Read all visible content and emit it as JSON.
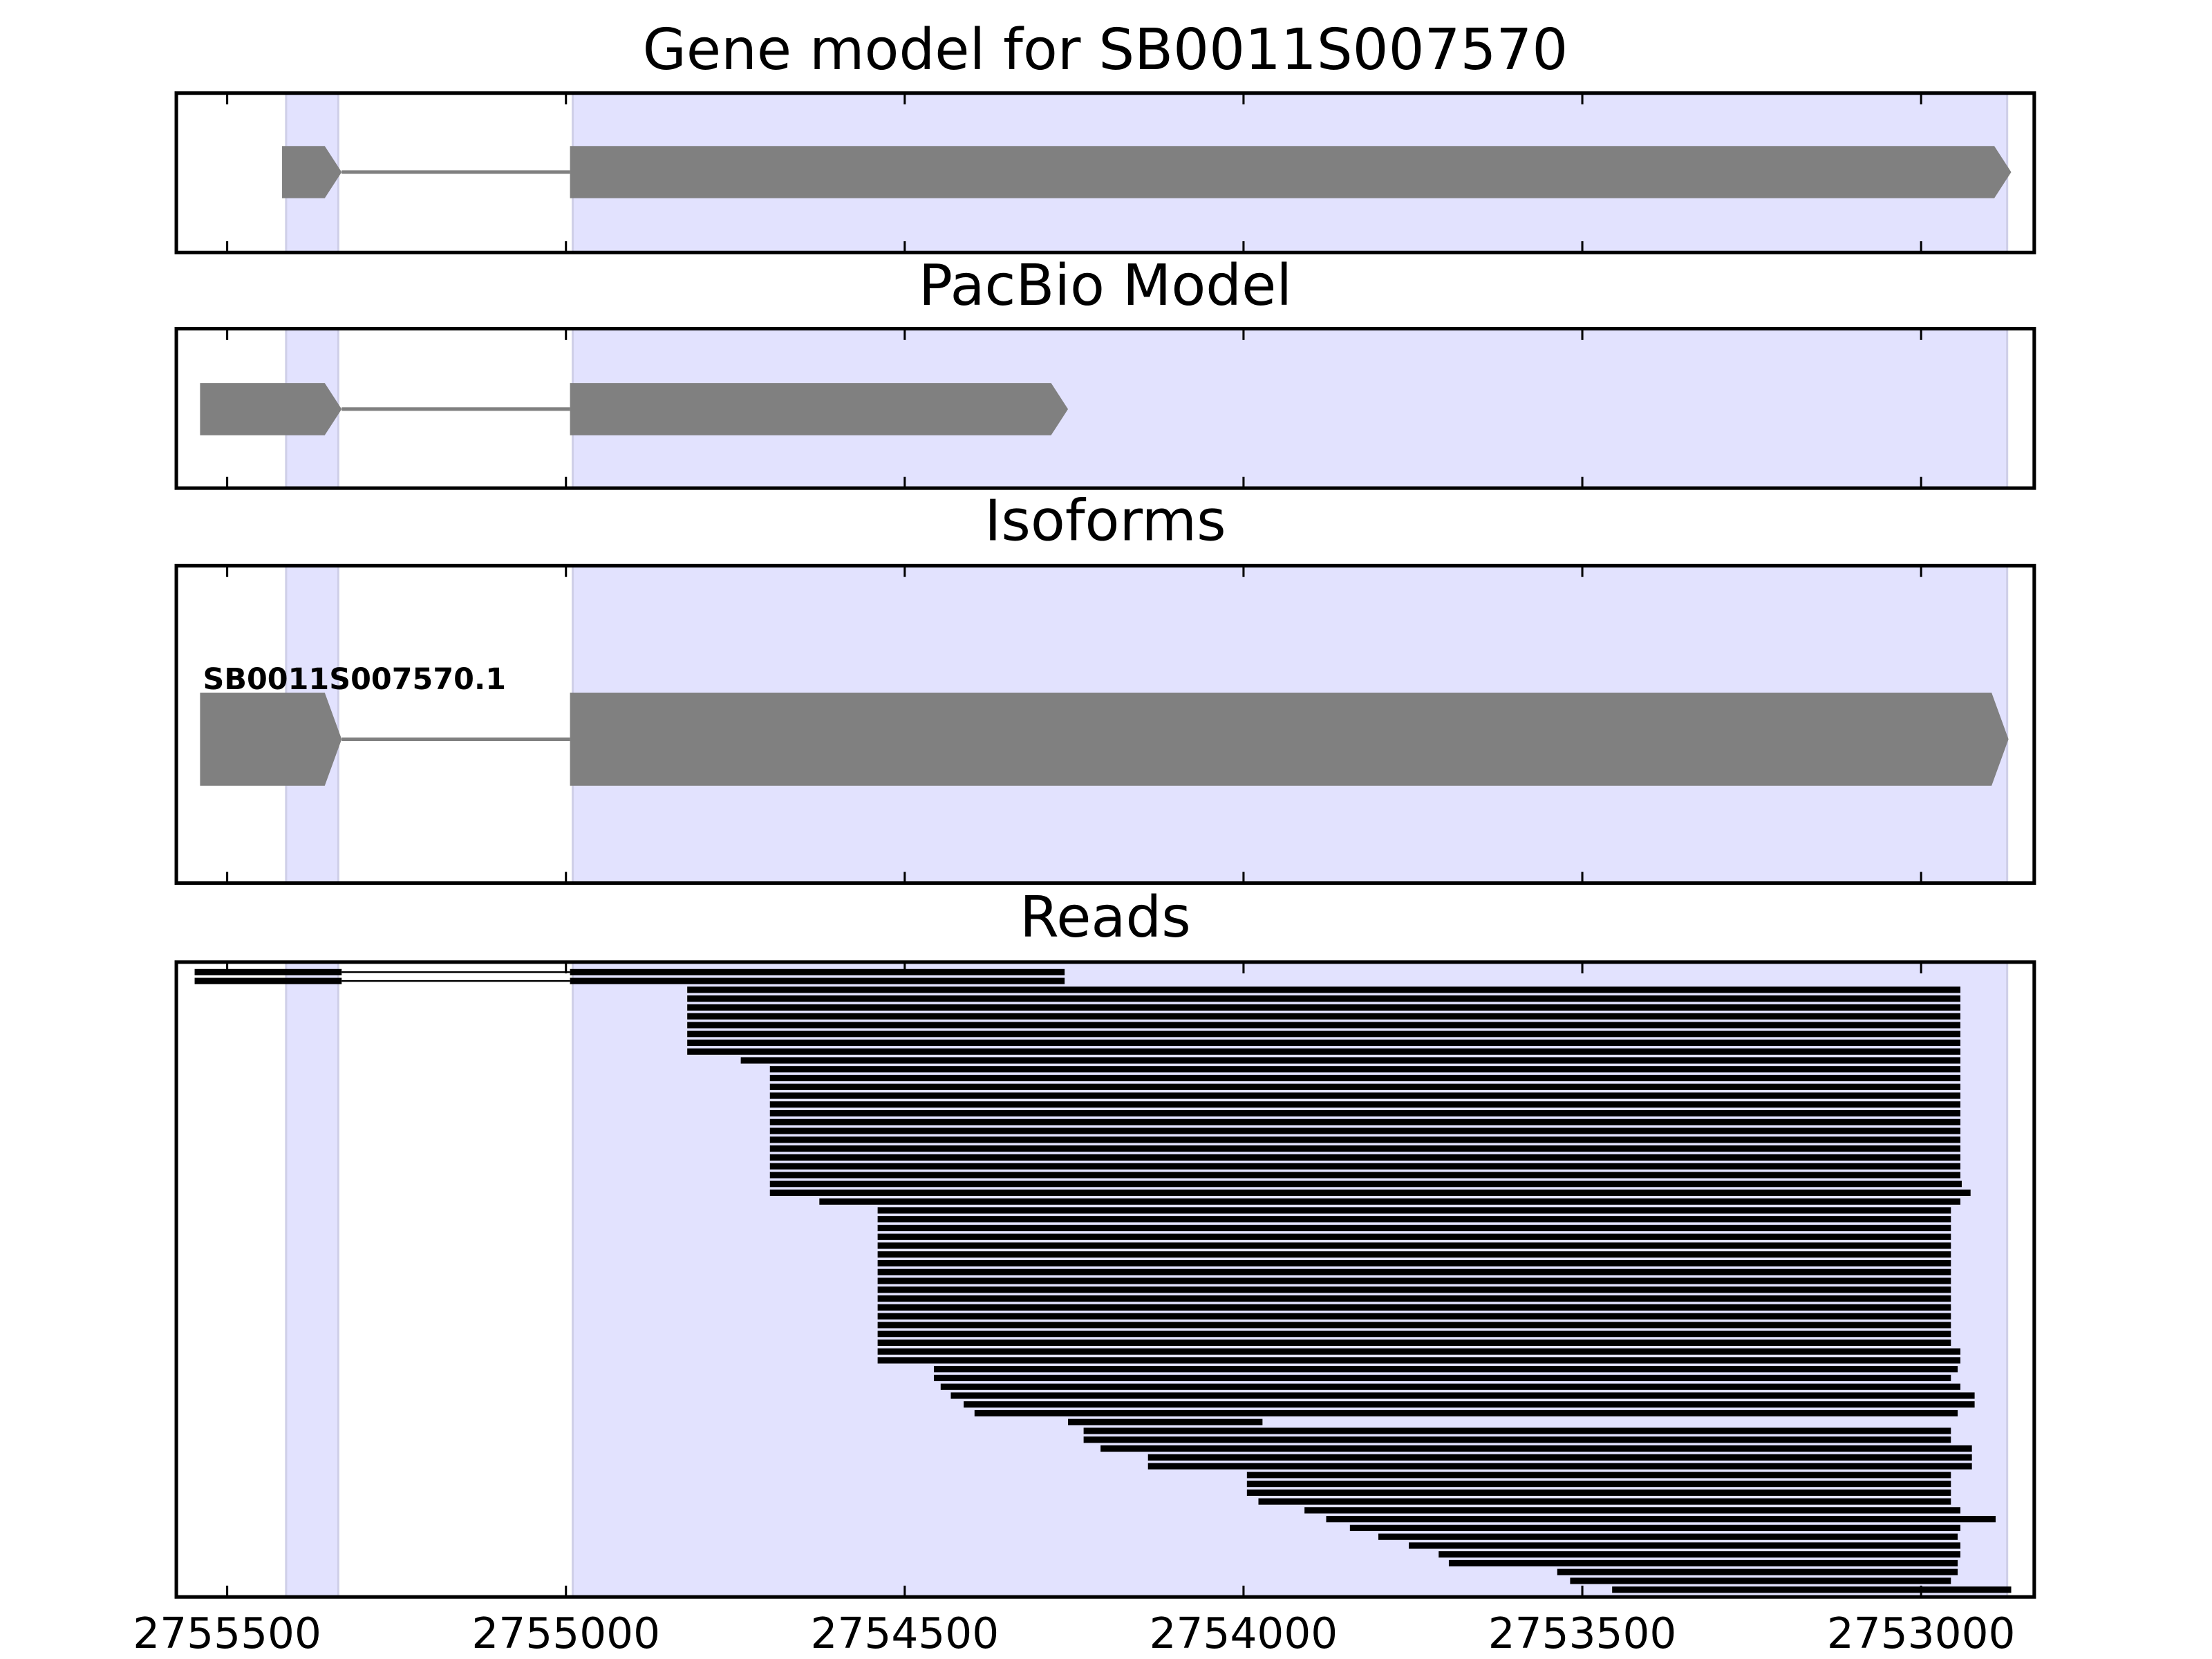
{
  "chart_data": {
    "type": "gene-tracks",
    "xlim": [
      2755575,
      2752833
    ],
    "xticks": [
      2755500,
      2755000,
      2754500,
      2754000,
      2753500,
      2753000
    ],
    "highlight_color": "#e2e2fe",
    "exon_color": "#808080",
    "read_color": "#000000",
    "highlights": [
      [
        2755413,
        2755336
      ],
      [
        2754990,
        2752873
      ]
    ],
    "panels": [
      {
        "title": "Gene model for SB0011S007570",
        "exons": [
          [
            2755419,
            2755331
          ],
          [
            2754994,
            2752867
          ]
        ]
      },
      {
        "title": "PacBio Model",
        "exons": [
          [
            2755540,
            2755331
          ],
          [
            2754994,
            2754259
          ]
        ]
      },
      {
        "title": "Isoforms",
        "isoforms": [
          {
            "name": "SB0011S007570.1",
            "exons": [
              [
                2755540,
                2755331
              ],
              [
                2754994,
                2752871
              ]
            ]
          }
        ]
      },
      {
        "title": "Reads",
        "reads": [
          [
            [
              2755548,
              2755331
            ],
            [
              2754994,
              2754264
            ]
          ],
          [
            [
              2755548,
              2755331
            ],
            [
              2754994,
              2754264
            ]
          ],
          [
            [
              2754821,
              2752942
            ]
          ],
          [
            [
              2754821,
              2752942
            ]
          ],
          [
            [
              2754821,
              2752942
            ]
          ],
          [
            [
              2754821,
              2752942
            ]
          ],
          [
            [
              2754821,
              2752942
            ]
          ],
          [
            [
              2754821,
              2752942
            ]
          ],
          [
            [
              2754821,
              2752942
            ]
          ],
          [
            [
              2754821,
              2752942
            ]
          ],
          [
            [
              2754742,
              2752942
            ]
          ],
          [
            [
              2754699,
              2752942
            ]
          ],
          [
            [
              2754699,
              2752942
            ]
          ],
          [
            [
              2754699,
              2752942
            ]
          ],
          [
            [
              2754699,
              2752942
            ]
          ],
          [
            [
              2754699,
              2752942
            ]
          ],
          [
            [
              2754699,
              2752942
            ]
          ],
          [
            [
              2754699,
              2752942
            ]
          ],
          [
            [
              2754699,
              2752942
            ]
          ],
          [
            [
              2754699,
              2752942
            ]
          ],
          [
            [
              2754699,
              2752942
            ]
          ],
          [
            [
              2754699,
              2752942
            ]
          ],
          [
            [
              2754699,
              2752942
            ]
          ],
          [
            [
              2754699,
              2752942
            ]
          ],
          [
            [
              2754699,
              2752940
            ]
          ],
          [
            [
              2754699,
              2752927
            ]
          ],
          [
            [
              2754626,
              2752942
            ]
          ],
          [
            [
              2754540,
              2752956
            ]
          ],
          [
            [
              2754540,
              2752956
            ]
          ],
          [
            [
              2754540,
              2752956
            ]
          ],
          [
            [
              2754540,
              2752956
            ]
          ],
          [
            [
              2754540,
              2752956
            ]
          ],
          [
            [
              2754540,
              2752956
            ]
          ],
          [
            [
              2754540,
              2752956
            ]
          ],
          [
            [
              2754540,
              2752956
            ]
          ],
          [
            [
              2754540,
              2752956
            ]
          ],
          [
            [
              2754540,
              2752956
            ]
          ],
          [
            [
              2754540,
              2752956
            ]
          ],
          [
            [
              2754540,
              2752956
            ]
          ],
          [
            [
              2754540,
              2752956
            ]
          ],
          [
            [
              2754540,
              2752956
            ]
          ],
          [
            [
              2754540,
              2752956
            ]
          ],
          [
            [
              2754540,
              2752956
            ]
          ],
          [
            [
              2754540,
              2752942
            ]
          ],
          [
            [
              2754540,
              2752942
            ]
          ],
          [
            [
              2754457,
              2752946
            ]
          ],
          [
            [
              2754457,
              2752956
            ]
          ],
          [
            [
              2754447,
              2752942
            ]
          ],
          [
            [
              2754432,
              2752921
            ]
          ],
          [
            [
              2754413,
              2752921
            ]
          ],
          [
            [
              2754397,
              2752946
            ]
          ],
          [
            [
              2754259,
              2753972
            ]
          ],
          [
            [
              2754236,
              2752956
            ]
          ],
          [
            [
              2754236,
              2752956
            ]
          ],
          [
            [
              2754211,
              2752925
            ]
          ],
          [
            [
              2754141,
              2752925
            ]
          ],
          [
            [
              2754141,
              2752925
            ]
          ],
          [
            [
              2753995,
              2752956
            ]
          ],
          [
            [
              2753995,
              2752956
            ]
          ],
          [
            [
              2753995,
              2752956
            ]
          ],
          [
            [
              2753978,
              2752956
            ]
          ],
          [
            [
              2753910,
              2752942
            ]
          ],
          [
            [
              2753878,
              2752890
            ]
          ],
          [
            [
              2753843,
              2752942
            ]
          ],
          [
            [
              2753801,
              2752946
            ]
          ],
          [
            [
              2753756,
              2752942
            ]
          ],
          [
            [
              2753712,
              2752942
            ]
          ],
          [
            [
              2753697,
              2752946
            ]
          ],
          [
            [
              2753537,
              2752946
            ]
          ],
          [
            [
              2753518,
              2752956
            ]
          ],
          [
            [
              2753456,
              2752867
            ]
          ]
        ]
      }
    ]
  }
}
